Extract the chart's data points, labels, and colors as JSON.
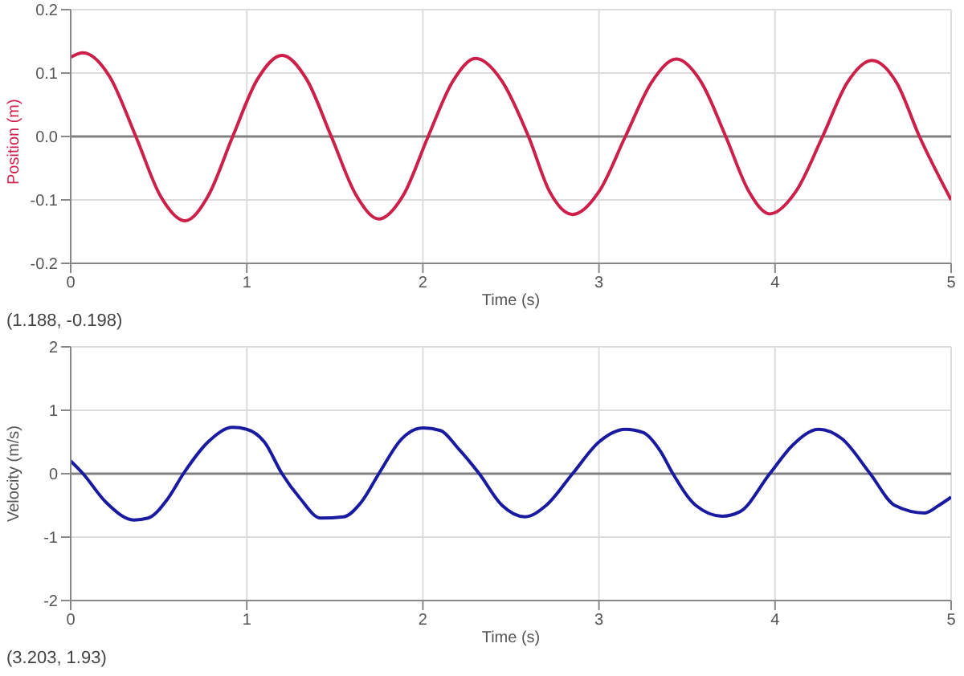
{
  "chart_data": [
    {
      "type": "line",
      "xlabel": "Time (s)",
      "ylabel": "Position (m)",
      "annotations": [
        "(1.188, -0.198)"
      ],
      "x": [
        0,
        0.07,
        0.22,
        0.37,
        0.51,
        0.65,
        0.78,
        0.92,
        1.06,
        1.2,
        1.34,
        1.48,
        1.62,
        1.75,
        1.89,
        2.03,
        2.17,
        2.3,
        2.45,
        2.6,
        2.72,
        2.85,
        3.0,
        3.15,
        3.3,
        3.44,
        3.58,
        3.72,
        3.85,
        3.97,
        4.12,
        4.27,
        4.41,
        4.55,
        4.69,
        4.82,
        5.0
      ],
      "series": [
        {
          "color": "#cc1f4a",
          "values": [
            0.125,
            0.132,
            0.095,
            0,
            -0.094,
            -0.133,
            -0.094,
            0,
            0.09,
            0.128,
            0.09,
            0,
            -0.092,
            -0.13,
            -0.092,
            0,
            0.087,
            0.123,
            0.087,
            0,
            -0.087,
            -0.123,
            -0.087,
            0,
            0.086,
            0.122,
            0.086,
            0,
            -0.086,
            -0.122,
            -0.086,
            0,
            0.085,
            0.12,
            0.085,
            0,
            -0.1
          ]
        }
      ],
      "xlim": [
        0,
        5
      ],
      "xticks": [
        0,
        1,
        2,
        3,
        4,
        5
      ],
      "ylim": [
        -0.2,
        0.2
      ],
      "yticks": [
        -0.2,
        -0.1,
        {
          "value": 0,
          "label": "0.0"
        },
        0.1,
        0.2
      ],
      "grid": true,
      "marker": "none",
      "ref_lines": [
        {
          "axis": "y",
          "value": 0,
          "color": "#808080"
        }
      ]
    },
    {
      "type": "line",
      "xlabel": "Time (s)",
      "ylabel": "Velocity (m/s)",
      "annotations": [
        "(3.203, 1.93)"
      ],
      "x": [
        0,
        0.07,
        0.2,
        0.36,
        0.44,
        0.55,
        0.64,
        0.78,
        0.92,
        1.0,
        1.1,
        1.2,
        1.3,
        1.42,
        1.55,
        1.65,
        1.75,
        1.88,
        2.0,
        2.1,
        2.2,
        2.32,
        2.45,
        2.58,
        2.7,
        2.85,
        3.0,
        3.15,
        3.25,
        3.35,
        3.42,
        3.55,
        3.7,
        3.8,
        3.97,
        4.1,
        4.25,
        4.38,
        4.54,
        4.68,
        4.85,
        4.93,
        5.0
      ],
      "series": [
        {
          "color": "#1a1aa0",
          "values": [
            0.2,
            0,
            -0.45,
            -0.73,
            -0.7,
            -0.4,
            0,
            0.5,
            0.73,
            0.7,
            0.5,
            0,
            -0.38,
            -0.7,
            -0.68,
            -0.45,
            0,
            0.55,
            0.72,
            0.68,
            0.4,
            0,
            -0.5,
            -0.68,
            -0.5,
            0,
            0.5,
            0.7,
            0.65,
            0.35,
            0,
            -0.5,
            -0.67,
            -0.6,
            0,
            0.45,
            0.7,
            0.55,
            0,
            -0.5,
            -0.62,
            -0.5,
            -0.37
          ]
        }
      ],
      "xlim": [
        0,
        5
      ],
      "xticks": [
        0,
        1,
        2,
        3,
        4,
        5
      ],
      "ylim": [
        -2,
        2
      ],
      "yticks": [
        -2,
        -1,
        0,
        1,
        2
      ],
      "grid": true,
      "marker": "none",
      "ref_lines": [
        {
          "axis": "y",
          "value": 0,
          "color": "#808080"
        }
      ]
    }
  ]
}
